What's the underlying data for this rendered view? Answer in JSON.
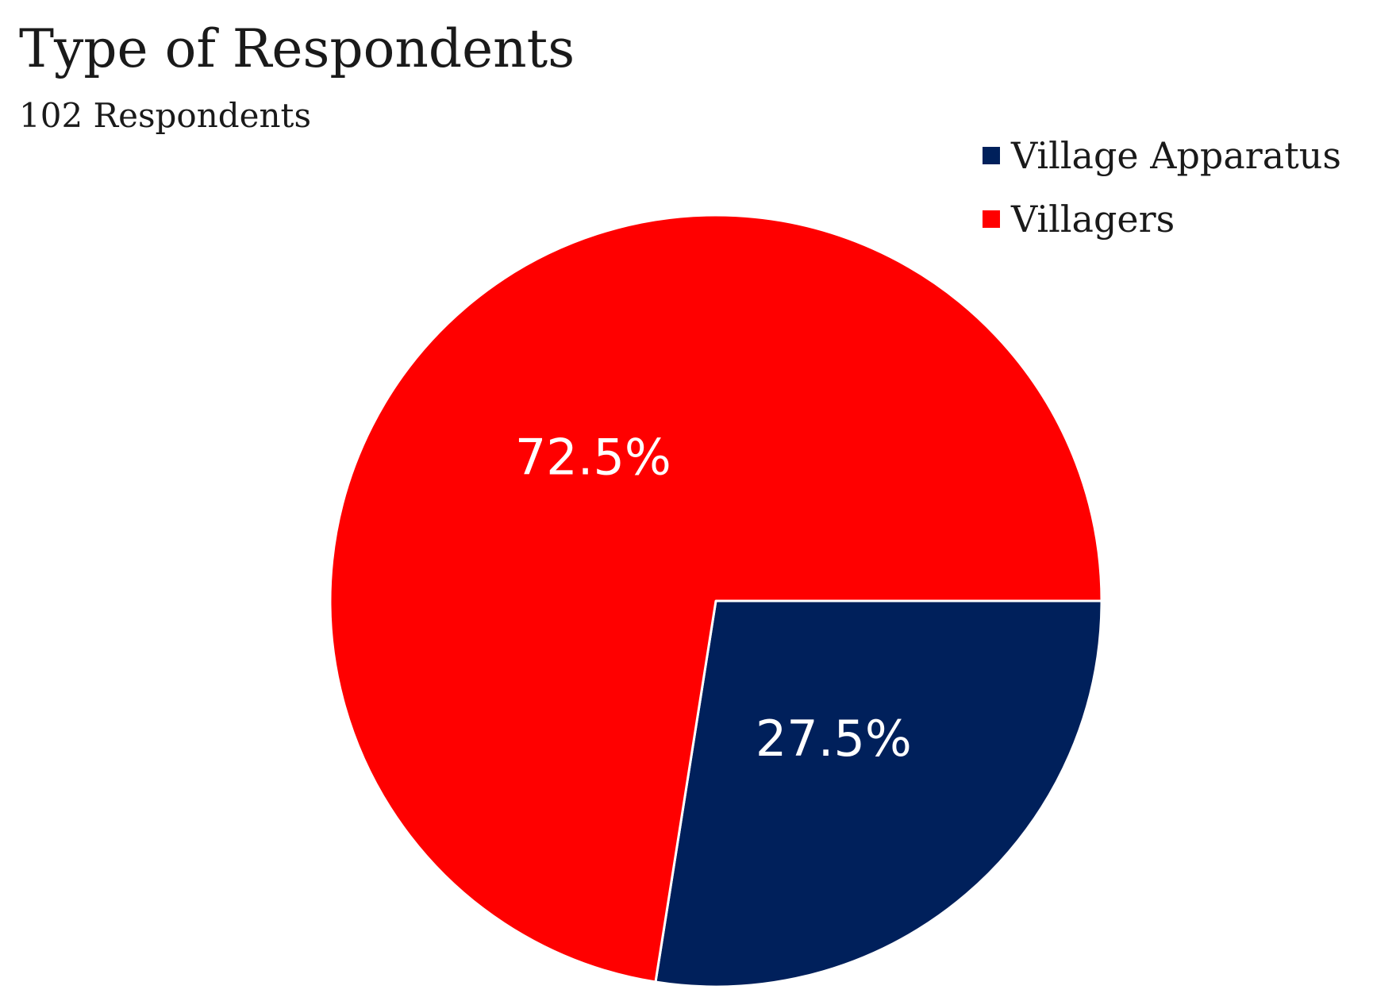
{
  "chart_data": {
    "type": "pie",
    "title": "Type of Respondents",
    "subtitle": "102 Respondents",
    "legend_position": "top-right",
    "slices": [
      {
        "name": "Village Apparatus",
        "value": 27.5,
        "label": "27.5%",
        "color": "#00205b"
      },
      {
        "name": "Villagers",
        "value": 72.5,
        "label": "72.5%",
        "color": "#ff0000"
      }
    ]
  }
}
